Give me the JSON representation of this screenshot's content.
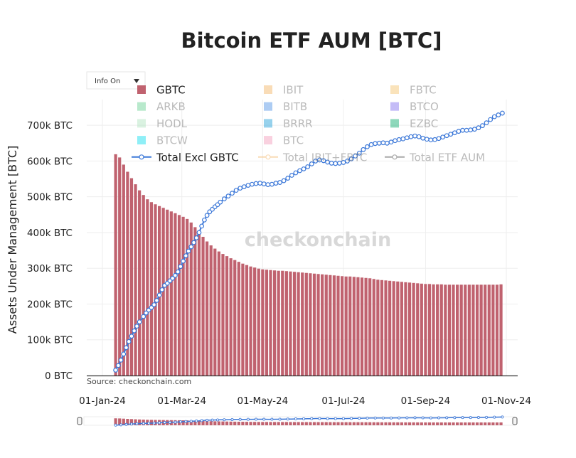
{
  "colors": {
    "gbtc": "#c0626f",
    "total_excl_gbtc": "#3c78d8",
    "grid": "#eeeeee",
    "axis": "#333333"
  },
  "dropdown": {
    "label": "Info On"
  },
  "watermark": "checkonchain",
  "source": "Source: checkonchain.com",
  "chart_data": {
    "type": "bar",
    "title": "Bitcoin ETF AUM [BTC]",
    "ylabel": "Assets Under Management [BTC]",
    "xlabel": "",
    "x_range": [
      "2024-01-01",
      "2024-11-01"
    ],
    "ylim": [
      0,
      760000
    ],
    "x_ticks": [
      "01-Jan-24",
      "01-Mar-24",
      "01-May-24",
      "01-Jul-24",
      "01-Sep-24",
      "01-Nov-24"
    ],
    "y_ticks": [
      "0 BTC",
      "100k BTC",
      "200k BTC",
      "300k BTC",
      "400k BTC",
      "500k BTC",
      "600k BTC",
      "700k BTC"
    ],
    "grid": true,
    "legend_position": "top",
    "legend": [
      {
        "name": "GBTC",
        "color": "#c0626f",
        "kind": "bar",
        "active": true
      },
      {
        "name": "IBIT",
        "color": "#f4b970",
        "kind": "bar",
        "active": false
      },
      {
        "name": "FBTC",
        "color": "#f6c97a",
        "kind": "bar",
        "active": false
      },
      {
        "name": "ARKB",
        "color": "#74d49a",
        "kind": "bar",
        "active": false
      },
      {
        "name": "BITB",
        "color": "#5b9ae8",
        "kind": "bar",
        "active": false
      },
      {
        "name": "BTCO",
        "color": "#8b7cf0",
        "kind": "bar",
        "active": false
      },
      {
        "name": "HODL",
        "color": "#b6e6c4",
        "kind": "bar",
        "active": false
      },
      {
        "name": "BRRR",
        "color": "#2fa6dc",
        "kind": "bar",
        "active": false
      },
      {
        "name": "EZBC",
        "color": "#1fb37a",
        "kind": "bar",
        "active": false
      },
      {
        "name": "BTCW",
        "color": "#22e0f0",
        "kind": "bar",
        "active": false
      },
      {
        "name": "BTC",
        "color": "#f4a3c0",
        "kind": "bar",
        "active": false
      },
      {
        "name": "Total Excl GBTC",
        "color": "#3c78d8",
        "kind": "line",
        "active": true
      },
      {
        "name": "Total IBIT+FBTC",
        "color": "#f4b970",
        "kind": "line",
        "active": false
      },
      {
        "name": "Total ETF AUM",
        "color": "#555555",
        "kind": "line",
        "active": false
      }
    ],
    "series": [
      {
        "name": "GBTC",
        "type": "bar",
        "points": [
          [
            "2024-01-11",
            619000
          ],
          [
            "2024-01-14",
            610000
          ],
          [
            "2024-01-17",
            590000
          ],
          [
            "2024-01-20",
            570000
          ],
          [
            "2024-01-23",
            552000
          ],
          [
            "2024-01-26",
            535000
          ],
          [
            "2024-01-29",
            518000
          ],
          [
            "2024-02-01",
            505000
          ],
          [
            "2024-02-04",
            493000
          ],
          [
            "2024-02-07",
            485000
          ],
          [
            "2024-02-10",
            479000
          ],
          [
            "2024-02-13",
            474000
          ],
          [
            "2024-02-16",
            469000
          ],
          [
            "2024-02-19",
            464000
          ],
          [
            "2024-02-22",
            459000
          ],
          [
            "2024-02-25",
            454000
          ],
          [
            "2024-02-28",
            449000
          ],
          [
            "2024-03-02",
            444000
          ],
          [
            "2024-03-05",
            438000
          ],
          [
            "2024-03-08",
            428000
          ],
          [
            "2024-03-11",
            415000
          ],
          [
            "2024-03-14",
            400000
          ],
          [
            "2024-03-17",
            388000
          ],
          [
            "2024-03-20",
            375000
          ],
          [
            "2024-03-23",
            364000
          ],
          [
            "2024-03-26",
            355000
          ],
          [
            "2024-03-29",
            347000
          ],
          [
            "2024-04-01",
            340000
          ],
          [
            "2024-04-04",
            334000
          ],
          [
            "2024-04-07",
            328000
          ],
          [
            "2024-04-10",
            323000
          ],
          [
            "2024-04-13",
            318000
          ],
          [
            "2024-04-16",
            313000
          ],
          [
            "2024-04-19",
            309000
          ],
          [
            "2024-04-22",
            305000
          ],
          [
            "2024-04-25",
            302000
          ],
          [
            "2024-04-28",
            299000
          ],
          [
            "2024-05-01",
            297000
          ],
          [
            "2024-05-04",
            296000
          ],
          [
            "2024-05-07",
            295000
          ],
          [
            "2024-05-10",
            294000
          ],
          [
            "2024-05-13",
            293000
          ],
          [
            "2024-05-16",
            293000
          ],
          [
            "2024-05-19",
            292000
          ],
          [
            "2024-05-22",
            291000
          ],
          [
            "2024-05-25",
            290000
          ],
          [
            "2024-05-28",
            289000
          ],
          [
            "2024-05-31",
            288000
          ],
          [
            "2024-06-03",
            287000
          ],
          [
            "2024-06-06",
            286000
          ],
          [
            "2024-06-09",
            285000
          ],
          [
            "2024-06-12",
            284000
          ],
          [
            "2024-06-15",
            283000
          ],
          [
            "2024-06-18",
            282000
          ],
          [
            "2024-06-21",
            281000
          ],
          [
            "2024-06-24",
            280000
          ],
          [
            "2024-06-27",
            279000
          ],
          [
            "2024-06-30",
            278000
          ],
          [
            "2024-07-03",
            277000
          ],
          [
            "2024-07-06",
            277000
          ],
          [
            "2024-07-09",
            276000
          ],
          [
            "2024-07-12",
            275000
          ],
          [
            "2024-07-15",
            274000
          ],
          [
            "2024-07-18",
            273000
          ],
          [
            "2024-07-21",
            272000
          ],
          [
            "2024-07-24",
            270000
          ],
          [
            "2024-07-27",
            268000
          ],
          [
            "2024-07-30",
            267000
          ],
          [
            "2024-08-02",
            266000
          ],
          [
            "2024-08-05",
            265000
          ],
          [
            "2024-08-08",
            264000
          ],
          [
            "2024-08-11",
            263000
          ],
          [
            "2024-08-14",
            262000
          ],
          [
            "2024-08-17",
            261000
          ],
          [
            "2024-08-20",
            260000
          ],
          [
            "2024-08-23",
            259000
          ],
          [
            "2024-08-26",
            258000
          ],
          [
            "2024-08-29",
            257000
          ],
          [
            "2024-09-01",
            256000
          ],
          [
            "2024-09-04",
            256000
          ],
          [
            "2024-09-07",
            255000
          ],
          [
            "2024-09-10",
            255000
          ],
          [
            "2024-09-13",
            255000
          ],
          [
            "2024-09-16",
            254000
          ],
          [
            "2024-09-19",
            254000
          ],
          [
            "2024-09-22",
            254000
          ],
          [
            "2024-09-25",
            254000
          ],
          [
            "2024-09-28",
            254000
          ],
          [
            "2024-10-01",
            254000
          ],
          [
            "2024-10-04",
            254000
          ],
          [
            "2024-10-07",
            254000
          ],
          [
            "2024-10-10",
            254000
          ],
          [
            "2024-10-13",
            254000
          ],
          [
            "2024-10-16",
            254000
          ],
          [
            "2024-10-19",
            254000
          ],
          [
            "2024-10-22",
            254000
          ],
          [
            "2024-10-25",
            254000
          ],
          [
            "2024-10-28",
            255000
          ]
        ]
      },
      {
        "name": "Total Excl GBTC",
        "type": "line",
        "points": [
          [
            "2024-01-11",
            15000
          ],
          [
            "2024-01-13",
            28000
          ],
          [
            "2024-01-15",
            43000
          ],
          [
            "2024-01-17",
            60000
          ],
          [
            "2024-01-19",
            78000
          ],
          [
            "2024-01-21",
            95000
          ],
          [
            "2024-01-23",
            110000
          ],
          [
            "2024-01-25",
            125000
          ],
          [
            "2024-01-27",
            138000
          ],
          [
            "2024-01-29",
            150000
          ],
          [
            "2024-02-01",
            165000
          ],
          [
            "2024-02-03",
            175000
          ],
          [
            "2024-02-05",
            183000
          ],
          [
            "2024-02-07",
            190000
          ],
          [
            "2024-02-09",
            198000
          ],
          [
            "2024-02-11",
            210000
          ],
          [
            "2024-02-13",
            225000
          ],
          [
            "2024-02-15",
            240000
          ],
          [
            "2024-02-17",
            252000
          ],
          [
            "2024-02-19",
            258000
          ],
          [
            "2024-02-21",
            265000
          ],
          [
            "2024-02-23",
            272000
          ],
          [
            "2024-02-25",
            280000
          ],
          [
            "2024-02-27",
            290000
          ],
          [
            "2024-02-29",
            305000
          ],
          [
            "2024-03-02",
            320000
          ],
          [
            "2024-03-04",
            335000
          ],
          [
            "2024-03-06",
            348000
          ],
          [
            "2024-03-08",
            360000
          ],
          [
            "2024-03-10",
            372000
          ],
          [
            "2024-03-12",
            385000
          ],
          [
            "2024-03-14",
            400000
          ],
          [
            "2024-03-16",
            418000
          ],
          [
            "2024-03-18",
            435000
          ],
          [
            "2024-03-20",
            448000
          ],
          [
            "2024-03-22",
            458000
          ],
          [
            "2024-03-24",
            465000
          ],
          [
            "2024-03-26",
            472000
          ],
          [
            "2024-03-28",
            478000
          ],
          [
            "2024-03-30",
            485000
          ],
          [
            "2024-04-02",
            494000
          ],
          [
            "2024-04-05",
            502000
          ],
          [
            "2024-04-08",
            510000
          ],
          [
            "2024-04-11",
            518000
          ],
          [
            "2024-04-14",
            524000
          ],
          [
            "2024-04-17",
            528000
          ],
          [
            "2024-04-20",
            532000
          ],
          [
            "2024-04-23",
            535000
          ],
          [
            "2024-04-26",
            537000
          ],
          [
            "2024-04-29",
            538000
          ],
          [
            "2024-05-02",
            536000
          ],
          [
            "2024-05-05",
            534000
          ],
          [
            "2024-05-08",
            535000
          ],
          [
            "2024-05-11",
            538000
          ],
          [
            "2024-05-14",
            540000
          ],
          [
            "2024-05-17",
            545000
          ],
          [
            "2024-05-20",
            552000
          ],
          [
            "2024-05-23",
            560000
          ],
          [
            "2024-05-26",
            567000
          ],
          [
            "2024-05-29",
            573000
          ],
          [
            "2024-06-01",
            578000
          ],
          [
            "2024-06-04",
            584000
          ],
          [
            "2024-06-07",
            592000
          ],
          [
            "2024-06-10",
            600000
          ],
          [
            "2024-06-13",
            603000
          ],
          [
            "2024-06-16",
            601000
          ],
          [
            "2024-06-19",
            597000
          ],
          [
            "2024-06-22",
            594000
          ],
          [
            "2024-06-25",
            593000
          ],
          [
            "2024-06-28",
            594000
          ],
          [
            "2024-07-01",
            596000
          ],
          [
            "2024-07-04",
            600000
          ],
          [
            "2024-07-07",
            606000
          ],
          [
            "2024-07-10",
            614000
          ],
          [
            "2024-07-13",
            622000
          ],
          [
            "2024-07-16",
            632000
          ],
          [
            "2024-07-19",
            640000
          ],
          [
            "2024-07-22",
            646000
          ],
          [
            "2024-07-25",
            649000
          ],
          [
            "2024-07-28",
            650000
          ],
          [
            "2024-07-31",
            651000
          ],
          [
            "2024-08-03",
            650000
          ],
          [
            "2024-08-06",
            653000
          ],
          [
            "2024-08-09",
            657000
          ],
          [
            "2024-08-12",
            660000
          ],
          [
            "2024-08-15",
            662000
          ],
          [
            "2024-08-18",
            665000
          ],
          [
            "2024-08-21",
            668000
          ],
          [
            "2024-08-24",
            670000
          ],
          [
            "2024-08-27",
            668000
          ],
          [
            "2024-08-30",
            664000
          ],
          [
            "2024-09-02",
            661000
          ],
          [
            "2024-09-05",
            659000
          ],
          [
            "2024-09-08",
            660000
          ],
          [
            "2024-09-11",
            663000
          ],
          [
            "2024-09-14",
            667000
          ],
          [
            "2024-09-17",
            671000
          ],
          [
            "2024-09-20",
            675000
          ],
          [
            "2024-09-23",
            679000
          ],
          [
            "2024-09-26",
            683000
          ],
          [
            "2024-09-29",
            686000
          ],
          [
            "2024-10-02",
            686000
          ],
          [
            "2024-10-05",
            687000
          ],
          [
            "2024-10-08",
            689000
          ],
          [
            "2024-10-11",
            693000
          ],
          [
            "2024-10-14",
            699000
          ],
          [
            "2024-10-17",
            707000
          ],
          [
            "2024-10-20",
            716000
          ],
          [
            "2024-10-23",
            724000
          ],
          [
            "2024-10-26",
            729000
          ],
          [
            "2024-10-29",
            734000
          ]
        ]
      }
    ]
  }
}
